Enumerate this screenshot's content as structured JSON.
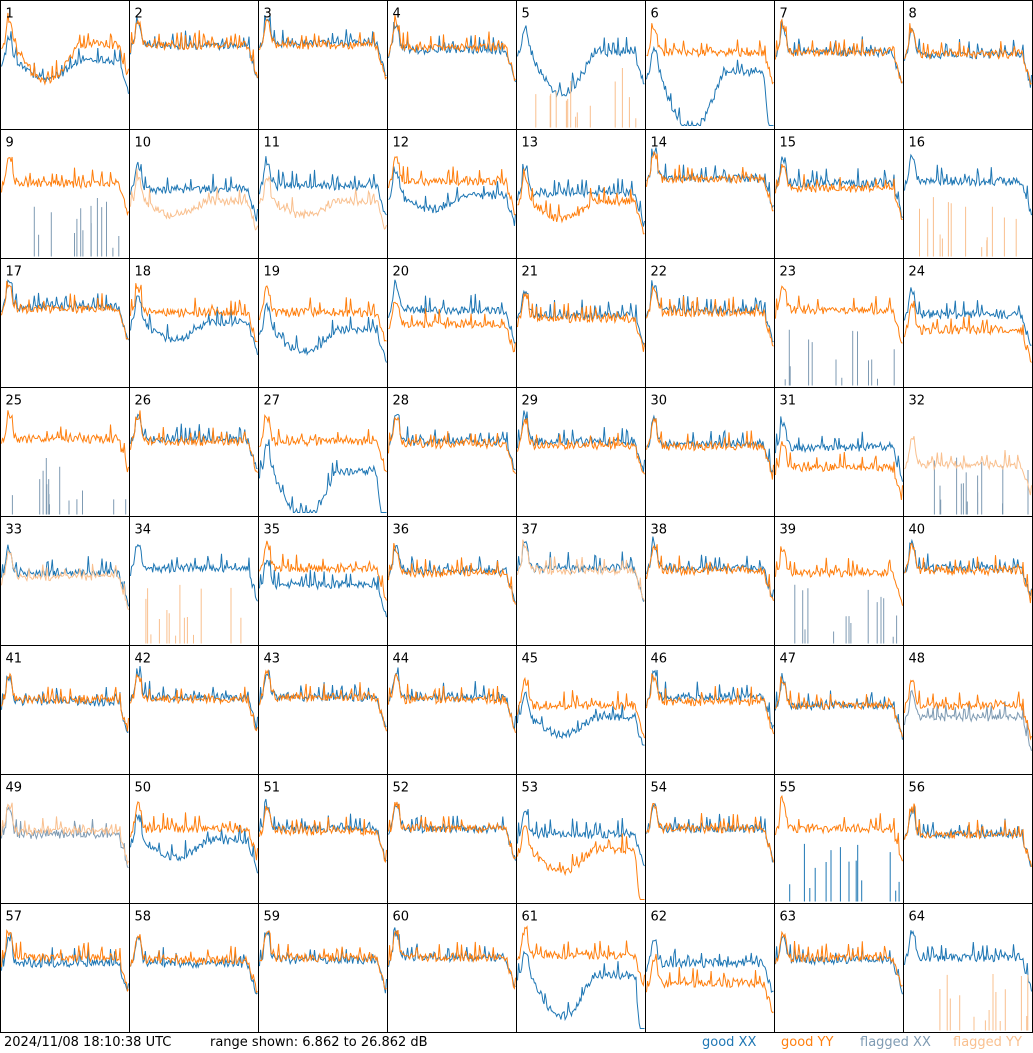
{
  "footer": {
    "timestamp": "2024/11/08 18:10:38 UTC",
    "range_text": "range shown: 6.862 to 26.862 dB",
    "legend": {
      "good_xx": "good XX",
      "good_yy": "good YY",
      "flagged_xx": "flagged XX",
      "flagged_yy": "flagged YY"
    }
  },
  "colors": {
    "good_xx": "#1f77b4",
    "good_yy": "#ff7f0e",
    "flagged_xx": "#7f9bb3",
    "flagged_yy": "#f9c08f",
    "border": "#000000"
  },
  "chart_data": {
    "type": "line",
    "y_range_db": [
      6.862,
      26.862
    ],
    "panel_labels": [
      "1",
      "2",
      "3",
      "4",
      "5",
      "6",
      "7",
      "8",
      "9",
      "10",
      "11",
      "12",
      "13",
      "14",
      "15",
      "16",
      "17",
      "18",
      "19",
      "20",
      "21",
      "22",
      "23",
      "24",
      "25",
      "26",
      "27",
      "28",
      "29",
      "30",
      "31",
      "32",
      "33",
      "34",
      "35",
      "36",
      "37",
      "38",
      "39",
      "40",
      "41",
      "42",
      "43",
      "44",
      "45",
      "46",
      "47",
      "48",
      "49",
      "50",
      "51",
      "52",
      "53",
      "54",
      "55",
      "56",
      "57",
      "58",
      "59",
      "60",
      "61",
      "62",
      "63",
      "64"
    ],
    "series": [
      {
        "name": "good XX"
      },
      {
        "name": "good YY"
      },
      {
        "name": "flagged XX"
      },
      {
        "name": "flagged YY"
      }
    ],
    "panels": [
      {
        "id": 1,
        "xx": "good",
        "yy": "good",
        "xx_level": 0.55,
        "yy_level": 0.68,
        "xx_dip": 0.15,
        "yy_dip": 0.3
      },
      {
        "id": 2,
        "xx": "good",
        "yy": "good",
        "xx_level": 0.68,
        "yy_level": 0.68
      },
      {
        "id": 3,
        "xx": "good",
        "yy": "good",
        "xx_level": 0.7,
        "yy_level": 0.68
      },
      {
        "id": 4,
        "xx": "good",
        "yy": "good",
        "xx_level": 0.64,
        "yy_level": 0.66
      },
      {
        "id": 5,
        "xx": "good",
        "yy": "flagged",
        "xx_level": 0.62,
        "xx_dip": 0.35,
        "yy_spiky": true
      },
      {
        "id": 6,
        "xx": "good",
        "yy": "good",
        "xx_level": 0.45,
        "yy_level": 0.62,
        "xx_dip": 0.5,
        "xx_drop_end": true
      },
      {
        "id": 7,
        "xx": "good",
        "yy": "good",
        "xx_level": 0.62,
        "yy_level": 0.62
      },
      {
        "id": 8,
        "xx": "good",
        "yy": "good",
        "xx_level": 0.6,
        "yy_level": 0.6
      },
      {
        "id": 9,
        "xx": "flagged",
        "yy": "good",
        "yy_level": 0.6,
        "xx_spiky": true
      },
      {
        "id": 10,
        "xx": "good",
        "yy": "flagged",
        "xx_level": 0.55,
        "yy_level": 0.45,
        "yy_dip": 0.12
      },
      {
        "id": 11,
        "xx": "good",
        "yy": "flagged",
        "xx_level": 0.58,
        "yy_level": 0.45,
        "yy_dip": 0.12
      },
      {
        "id": 12,
        "xx": "good",
        "yy": "good",
        "xx_level": 0.5,
        "yy_level": 0.62,
        "xx_dip": 0.12
      },
      {
        "id": 13,
        "xx": "good",
        "yy": "good",
        "xx_level": 0.52,
        "yy_level": 0.45,
        "yy_dip": 0.15
      },
      {
        "id": 14,
        "xx": "good",
        "yy": "good",
        "xx_level": 0.65,
        "yy_level": 0.64
      },
      {
        "id": 15,
        "xx": "good",
        "yy": "good",
        "xx_level": 0.6,
        "yy_level": 0.56
      },
      {
        "id": 16,
        "xx": "good",
        "yy": "flagged",
        "xx_level": 0.62,
        "yy_spiky": true
      },
      {
        "id": 17,
        "xx": "good",
        "yy": "good",
        "xx_level": 0.65,
        "yy_level": 0.63
      },
      {
        "id": 18,
        "xx": "good",
        "yy": "good",
        "xx_level": 0.52,
        "yy_level": 0.6,
        "xx_dip": 0.15
      },
      {
        "id": 19,
        "xx": "good",
        "yy": "good",
        "xx_level": 0.45,
        "yy_level": 0.6,
        "xx_dip": 0.18
      },
      {
        "id": 20,
        "xx": "good",
        "yy": "good",
        "xx_level": 0.62,
        "yy_level": 0.5
      },
      {
        "id": 21,
        "xx": "good",
        "yy": "good",
        "xx_level": 0.58,
        "yy_level": 0.55
      },
      {
        "id": 22,
        "xx": "good",
        "yy": "good",
        "xx_level": 0.62,
        "yy_level": 0.6
      },
      {
        "id": 23,
        "xx": "flagged",
        "yy": "good",
        "yy_level": 0.62,
        "xx_spiky": true,
        "xx_noisy": true
      },
      {
        "id": 24,
        "xx": "good",
        "yy": "good",
        "xx_level": 0.58,
        "yy_level": 0.45
      },
      {
        "id": 25,
        "xx": "flagged",
        "yy": "good",
        "yy_level": 0.62,
        "xx_spiky": true
      },
      {
        "id": 26,
        "xx": "good",
        "yy": "good",
        "xx_level": 0.62,
        "yy_level": 0.6
      },
      {
        "id": 27,
        "xx": "good",
        "yy": "good",
        "xx_level": 0.35,
        "yy_level": 0.6,
        "xx_dip": 0.4,
        "xx_drop_end": true
      },
      {
        "id": 28,
        "xx": "good",
        "yy": "good",
        "xx_level": 0.6,
        "yy_level": 0.58
      },
      {
        "id": 29,
        "xx": "good",
        "yy": "good",
        "xx_level": 0.6,
        "yy_level": 0.57
      },
      {
        "id": 30,
        "xx": "good",
        "yy": "good",
        "xx_level": 0.58,
        "yy_level": 0.56
      },
      {
        "id": 31,
        "xx": "good",
        "yy": "good",
        "xx_level": 0.55,
        "yy_level": 0.38
      },
      {
        "id": 32,
        "xx": "flagged",
        "yy": "flagged",
        "yy_level": 0.4,
        "xx_spiky": true
      },
      {
        "id": 33,
        "xx": "good",
        "yy": "flagged",
        "xx_level": 0.58,
        "yy_level": 0.55
      },
      {
        "id": 34,
        "xx": "good",
        "yy": "flagged",
        "xx_level": 0.62,
        "yy_spiky": true
      },
      {
        "id": 35,
        "xx": "good",
        "yy": "good",
        "xx_level": 0.48,
        "yy_level": 0.62
      },
      {
        "id": 36,
        "xx": "good",
        "yy": "good",
        "xx_level": 0.6,
        "yy_level": 0.58
      },
      {
        "id": 37,
        "xx": "good",
        "yy": "flagged",
        "xx_level": 0.62,
        "yy_level": 0.6
      },
      {
        "id": 38,
        "xx": "good",
        "yy": "good",
        "xx_level": 0.62,
        "yy_level": 0.6
      },
      {
        "id": 39,
        "xx": "flagged",
        "yy": "good",
        "yy_level": 0.58,
        "xx_spiky": true
      },
      {
        "id": 40,
        "xx": "good",
        "yy": "good",
        "xx_level": 0.62,
        "yy_level": 0.6
      },
      {
        "id": 41,
        "xx": "good",
        "yy": "good",
        "xx_level": 0.58,
        "yy_level": 0.6
      },
      {
        "id": 42,
        "xx": "good",
        "yy": "good",
        "xx_level": 0.62,
        "yy_level": 0.6
      },
      {
        "id": 43,
        "xx": "good",
        "yy": "good",
        "xx_level": 0.62,
        "yy_level": 0.62
      },
      {
        "id": 44,
        "xx": "good",
        "yy": "good",
        "xx_level": 0.62,
        "yy_level": 0.6
      },
      {
        "id": 45,
        "xx": "good",
        "yy": "good",
        "xx_level": 0.45,
        "yy_level": 0.55,
        "xx_dip": 0.15
      },
      {
        "id": 46,
        "xx": "good",
        "yy": "good",
        "xx_level": 0.62,
        "yy_level": 0.58
      },
      {
        "id": 47,
        "xx": "good",
        "yy": "good",
        "xx_level": 0.55,
        "yy_level": 0.55
      },
      {
        "id": 48,
        "xx": "flagged",
        "yy": "good",
        "xx_level": 0.45,
        "yy_level": 0.55
      },
      {
        "id": 49,
        "xx": "flagged",
        "yy": "flagged",
        "xx_level": 0.55,
        "yy_level": 0.58
      },
      {
        "id": 50,
        "xx": "good",
        "yy": "good",
        "xx_level": 0.5,
        "yy_level": 0.6,
        "xx_dip": 0.15
      },
      {
        "id": 51,
        "xx": "good",
        "yy": "good",
        "xx_level": 0.6,
        "yy_level": 0.58
      },
      {
        "id": 52,
        "xx": "good",
        "yy": "good",
        "xx_level": 0.6,
        "yy_level": 0.6
      },
      {
        "id": 53,
        "xx": "good",
        "yy": "good",
        "xx_level": 0.55,
        "yy_level": 0.42,
        "yy_dip": 0.18,
        "yy_drop_end": true
      },
      {
        "id": 54,
        "xx": "good",
        "yy": "good",
        "xx_level": 0.6,
        "yy_level": 0.6
      },
      {
        "id": 55,
        "xx": "good",
        "yy": "good",
        "yy_level": 0.6,
        "xx_spiky": true
      },
      {
        "id": 56,
        "xx": "good",
        "yy": "good",
        "xx_level": 0.55,
        "yy_level": 0.55
      },
      {
        "id": 57,
        "xx": "good",
        "yy": "good",
        "xx_level": 0.55,
        "yy_level": 0.6
      },
      {
        "id": 58,
        "xx": "good",
        "yy": "good",
        "xx_level": 0.55,
        "yy_level": 0.58
      },
      {
        "id": 59,
        "xx": "good",
        "yy": "good",
        "xx_level": 0.58,
        "yy_level": 0.6
      },
      {
        "id": 60,
        "xx": "good",
        "yy": "good",
        "xx_level": 0.6,
        "yy_level": 0.6
      },
      {
        "id": 61,
        "xx": "good",
        "yy": "good",
        "xx_level": 0.45,
        "yy_level": 0.62,
        "xx_dip": 0.35,
        "xx_drop_end": true
      },
      {
        "id": 62,
        "xx": "good",
        "yy": "good",
        "xx_level": 0.55,
        "yy_level": 0.38
      },
      {
        "id": 63,
        "xx": "good",
        "yy": "good",
        "xx_level": 0.58,
        "yy_level": 0.6
      },
      {
        "id": 64,
        "xx": "good",
        "yy": "flagged",
        "xx_level": 0.6,
        "yy_spiky": true
      }
    ]
  }
}
